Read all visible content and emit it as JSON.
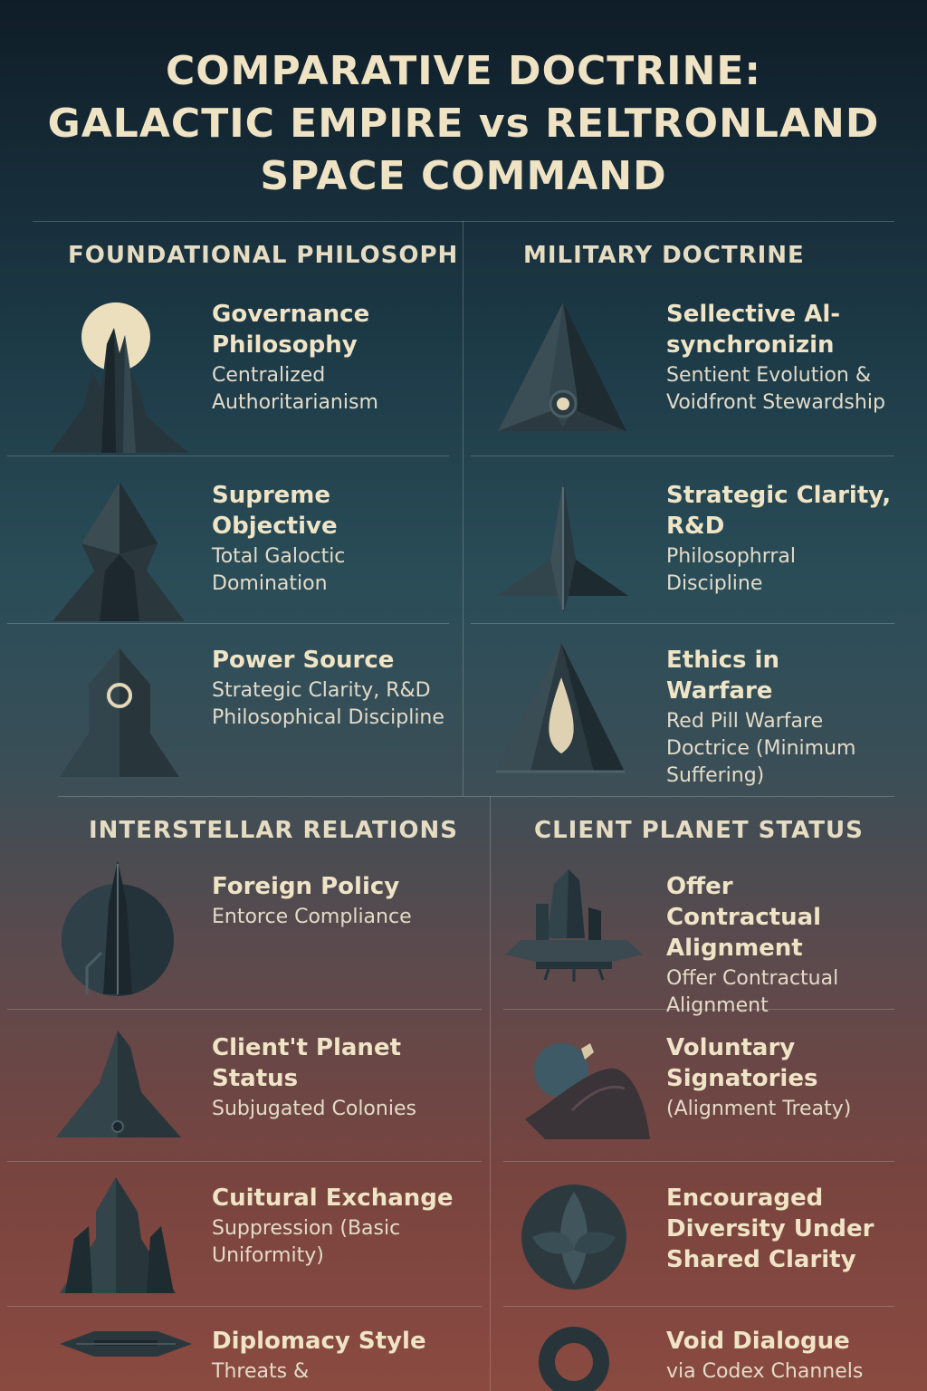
{
  "title": {
    "line1": "COMPARATIVE DOCTRINE:",
    "line2": "GALACTIC EMPIRE vs RELTRONLAND",
    "line3": "SPACE COMMAND"
  },
  "sections": {
    "foundational": "FOUNDATIONAL PHILOSOPH",
    "military": "MILITARY DOCTRINE",
    "interstellar": "INTERSTELLAR RELATIONS",
    "client": "CLIENT PLANET STATUS"
  },
  "items": [
    {
      "title": "Governance Philosophy",
      "desc": "Centralized Authoritarianism",
      "icon": "moonlit-spire-icon"
    },
    {
      "title": "Sellective Al-synchronizin",
      "desc": "Sentient Evolution & Voidfront Stewardship",
      "icon": "triangle-eye-icon"
    },
    {
      "title": "Supreme Objective",
      "desc": "Total Galoctic Domination",
      "icon": "pyramid-tower-icon"
    },
    {
      "title": "Strategic Clarity, R&D",
      "desc": "Philosophrral Discipline",
      "icon": "star-fighter-icon"
    },
    {
      "title": "Power Source",
      "desc": "Strategic Clarity, R&D Philosophical Discipline",
      "icon": "ring-tower-icon"
    },
    {
      "title": "Ethics in Warfare",
      "desc": "Red Pill Warfare Doctrice (Minimum Suffering)",
      "icon": "teardrop-pyramid-icon"
    },
    {
      "title": "Foreign Policy",
      "desc": "Entorce Compliance",
      "icon": "sphere-spire-icon"
    },
    {
      "title": "Offer Contractual Alignment",
      "desc": "Offer Contractual Alignment",
      "icon": "floating-city-icon"
    },
    {
      "title": "Client't Planet Status",
      "desc": "Subjugated Colonies",
      "icon": "dark-spire-ship-icon"
    },
    {
      "title": "Voluntary Signatories",
      "desc": "(Alignment Treaty)",
      "icon": "planet-rock-icon"
    },
    {
      "title": "Cuitural Exchange",
      "desc": "Suppression (Basic Uniformity)",
      "icon": "castle-fortress-icon"
    },
    {
      "title": "Encouraged Diversity Under Shared Clarity",
      "desc": "",
      "icon": "leaf-sphere-icon"
    },
    {
      "title": "Diplomacy Style",
      "desc": "Threats &",
      "icon": "flat-cruiser-icon"
    },
    {
      "title": "Void Dialogue",
      "desc": "via Codex Channels",
      "icon": "ring-portal-icon"
    }
  ]
}
